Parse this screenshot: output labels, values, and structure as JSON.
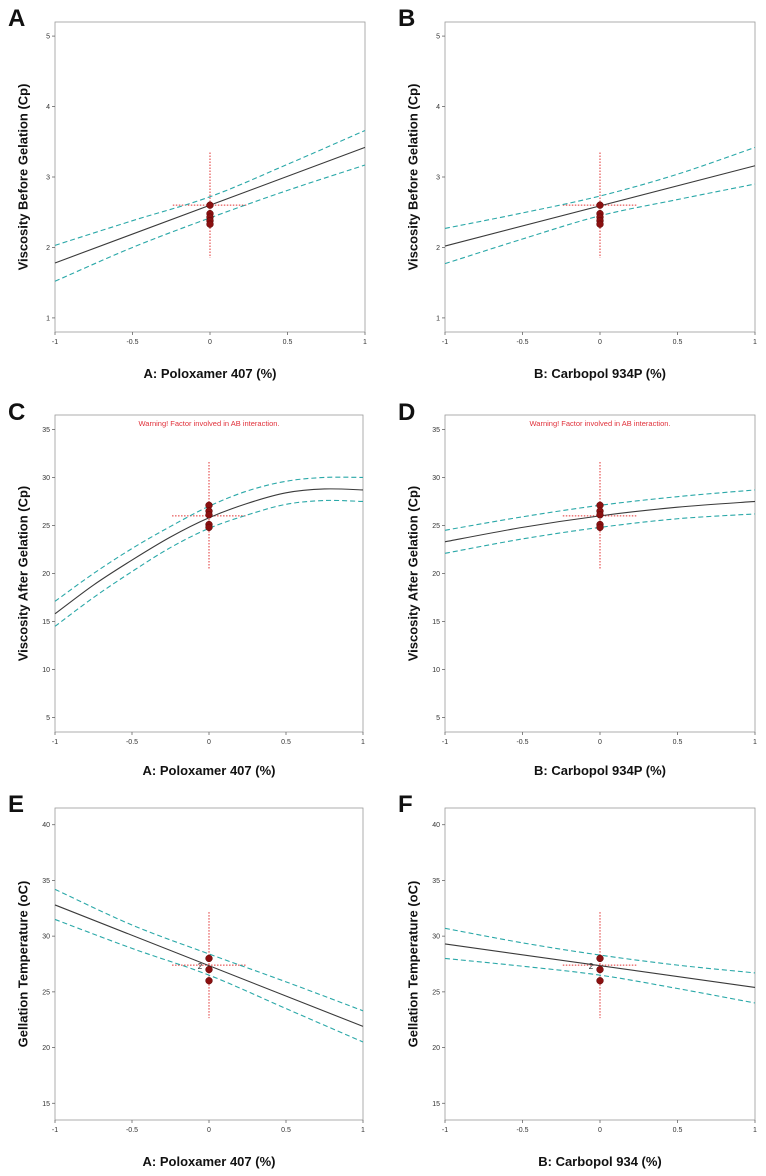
{
  "figure": {
    "chart_data": [
      {
        "type": "line",
        "panel_label": "A",
        "title": "",
        "xlabel": "A: Poloxamer 407 (%)",
        "ylabel": "Viscosity Before Gelation (Cp)",
        "xlim": [
          -1,
          1
        ],
        "ylim": [
          0.8,
          5.2
        ],
        "xticks": [
          -1,
          -0.5,
          0,
          0.5,
          1
        ],
        "xtick_labels": [
          "-1",
          "-0.5",
          "0",
          "0.5",
          "1"
        ],
        "yticks": [
          1,
          2,
          3,
          4,
          5
        ],
        "ytick_labels": [
          "1",
          "2",
          "3",
          "4",
          "5"
        ],
        "warning": "",
        "series": [
          {
            "name": "prediction",
            "x": [
              -1,
              1
            ],
            "y": [
              1.78,
              3.42
            ]
          },
          {
            "name": "upper_ci",
            "x": [
              -1,
              -0.5,
              0,
              0.5,
              1
            ],
            "y": [
              2.03,
              2.38,
              2.72,
              3.18,
              3.66
            ]
          },
          {
            "name": "lower_ci",
            "x": [
              -1,
              -0.5,
              0,
              0.5,
              1
            ],
            "y": [
              1.52,
              2.0,
              2.42,
              2.81,
              3.17
            ]
          }
        ],
        "design_points": {
          "x": [
            0,
            0,
            0,
            0,
            0
          ],
          "y": [
            2.6,
            2.48,
            2.43,
            2.38,
            2.33
          ]
        },
        "center": {
          "x": 0,
          "y": 2.6
        },
        "center_label": ""
      },
      {
        "type": "line",
        "panel_label": "B",
        "title": "",
        "xlabel": "B: Carbopol 934P (%)",
        "ylabel": "Viscosity Before Gelation (Cp)",
        "xlim": [
          -1,
          1
        ],
        "ylim": [
          0.8,
          5.2
        ],
        "xticks": [
          -1,
          -0.5,
          0,
          0.5,
          1
        ],
        "xtick_labels": [
          "-1",
          "-0.5",
          "0",
          "0.5",
          "1"
        ],
        "yticks": [
          1,
          2,
          3,
          4,
          5
        ],
        "ytick_labels": [
          "1",
          "2",
          "3",
          "4",
          "5"
        ],
        "warning": "",
        "series": [
          {
            "name": "prediction",
            "x": [
              -1,
              1
            ],
            "y": [
              2.02,
              3.16
            ]
          },
          {
            "name": "upper_ci",
            "x": [
              -1,
              -0.5,
              0,
              0.5,
              1
            ],
            "y": [
              2.27,
              2.49,
              2.73,
              3.04,
              3.42
            ]
          },
          {
            "name": "lower_ci",
            "x": [
              -1,
              -0.5,
              0,
              0.5,
              1
            ],
            "y": [
              1.77,
              2.12,
              2.45,
              2.68,
              2.9
            ]
          }
        ],
        "design_points": {
          "x": [
            0,
            0,
            0,
            0,
            0
          ],
          "y": [
            2.6,
            2.48,
            2.43,
            2.38,
            2.33
          ]
        },
        "center": {
          "x": 0,
          "y": 2.6
        },
        "center_label": ""
      },
      {
        "type": "line",
        "panel_label": "C",
        "title": "",
        "xlabel": "A: Poloxamer 407 (%)",
        "ylabel": "Viscosity After Gelation (Cp)",
        "xlim": [
          -1,
          1
        ],
        "ylim": [
          3.5,
          36.5
        ],
        "xticks": [
          -1,
          -0.5,
          0,
          0.5,
          1
        ],
        "xtick_labels": [
          "-1",
          "-0.5",
          "0",
          "0.5",
          "1"
        ],
        "yticks": [
          5,
          10,
          15,
          20,
          25,
          30,
          35
        ],
        "ytick_labels": [
          "5",
          "10",
          "15",
          "20",
          "25",
          "30",
          "35"
        ],
        "warning": "Warning! Factor involved in AB interaction.",
        "series": [
          {
            "name": "prediction",
            "x": [
              -1,
              -0.75,
              -0.5,
              -0.25,
              0,
              0.25,
              0.5,
              0.75,
              1
            ],
            "y": [
              15.8,
              18.8,
              21.4,
              23.8,
              25.8,
              27.3,
              28.4,
              28.8,
              28.7
            ]
          },
          {
            "name": "upper_ci",
            "x": [
              -1,
              -0.75,
              -0.5,
              -0.25,
              0,
              0.25,
              0.5,
              0.75,
              1
            ],
            "y": [
              17.1,
              20.0,
              22.6,
              24.9,
              27.0,
              28.6,
              29.6,
              30.0,
              30.0
            ]
          },
          {
            "name": "lower_ci",
            "x": [
              -1,
              -0.75,
              -0.5,
              -0.25,
              0,
              0.25,
              0.5,
              0.75,
              1
            ],
            "y": [
              14.5,
              17.5,
              20.2,
              22.7,
              24.7,
              26.1,
              27.2,
              27.6,
              27.5
            ]
          }
        ],
        "design_points": {
          "x": [
            0,
            0,
            0,
            0,
            0
          ],
          "y": [
            27.1,
            26.5,
            26.1,
            25.1,
            24.8
          ]
        },
        "center": {
          "x": 0,
          "y": 26
        },
        "center_label": ""
      },
      {
        "type": "line",
        "panel_label": "D",
        "title": "",
        "xlabel": "B: Carbopol 934P (%)",
        "ylabel": "Viscosity After Gelation (Cp)",
        "xlim": [
          -1,
          1
        ],
        "ylim": [
          3.5,
          36.5
        ],
        "xticks": [
          -1,
          -0.5,
          0,
          0.5,
          1
        ],
        "xtick_labels": [
          "-1",
          "-0.5",
          "0",
          "0.5",
          "1"
        ],
        "yticks": [
          5,
          10,
          15,
          20,
          25,
          30,
          35
        ],
        "ytick_labels": [
          "5",
          "10",
          "15",
          "20",
          "25",
          "30",
          "35"
        ],
        "warning": "Warning! Factor involved in AB interaction.",
        "series": [
          {
            "name": "prediction",
            "x": [
              -1,
              -0.5,
              0,
              0.5,
              1
            ],
            "y": [
              23.3,
              24.8,
              26.0,
              26.9,
              27.5
            ]
          },
          {
            "name": "upper_ci",
            "x": [
              -1,
              -0.5,
              0,
              0.5,
              1
            ],
            "y": [
              24.5,
              25.9,
              27.1,
              28.0,
              28.7
            ]
          },
          {
            "name": "lower_ci",
            "x": [
              -1,
              -0.5,
              0,
              0.5,
              1
            ],
            "y": [
              22.1,
              23.6,
              24.8,
              25.7,
              26.2
            ]
          }
        ],
        "design_points": {
          "x": [
            0,
            0,
            0,
            0,
            0
          ],
          "y": [
            27.1,
            26.5,
            26.1,
            25.1,
            24.8
          ]
        },
        "center": {
          "x": 0,
          "y": 26
        },
        "center_label": ""
      },
      {
        "type": "line",
        "panel_label": "E",
        "title": "",
        "xlabel": "A: Poloxamer 407 (%)",
        "ylabel": "Gellation Temperature (oC)",
        "xlim": [
          -1,
          1
        ],
        "ylim": [
          13.5,
          41.5
        ],
        "xticks": [
          -1,
          -0.5,
          0,
          0.5,
          1
        ],
        "xtick_labels": [
          "-1",
          "-0.5",
          "0",
          "0.5",
          "1"
        ],
        "yticks": [
          15,
          20,
          25,
          30,
          35,
          40
        ],
        "ytick_labels": [
          "15",
          "20",
          "25",
          "30",
          "35",
          "40"
        ],
        "warning": "",
        "series": [
          {
            "name": "prediction",
            "x": [
              -1,
              1
            ],
            "y": [
              32.8,
              21.9
            ]
          },
          {
            "name": "upper_ci",
            "x": [
              -1,
              -0.5,
              0,
              0.5,
              1
            ],
            "y": [
              34.2,
              31.0,
              28.4,
              25.9,
              23.3
            ]
          },
          {
            "name": "lower_ci",
            "x": [
              -1,
              -0.5,
              0,
              0.5,
              1
            ],
            "y": [
              31.5,
              28.9,
              26.5,
              23.5,
              20.5
            ]
          }
        ],
        "design_points": {
          "x": [
            0,
            0,
            0
          ],
          "y": [
            28.0,
            27.0,
            26.0
          ]
        },
        "center": {
          "x": 0,
          "y": 27.4
        },
        "center_label": "2"
      },
      {
        "type": "line",
        "panel_label": "F",
        "title": "",
        "xlabel": "B: Carbopol 934 (%)",
        "ylabel": "Gellation Temperature (oC)",
        "xlim": [
          -1,
          1
        ],
        "ylim": [
          13.5,
          41.5
        ],
        "xticks": [
          -1,
          -0.5,
          0,
          0.5,
          1
        ],
        "xtick_labels": [
          "-1",
          "-0.5",
          "0",
          "0.5",
          "1"
        ],
        "yticks": [
          15,
          20,
          25,
          30,
          35,
          40
        ],
        "ytick_labels": [
          "15",
          "20",
          "25",
          "30",
          "35",
          "40"
        ],
        "warning": "",
        "series": [
          {
            "name": "prediction",
            "x": [
              -1,
              1
            ],
            "y": [
              29.3,
              25.4
            ]
          },
          {
            "name": "upper_ci",
            "x": [
              -1,
              -0.5,
              0,
              0.5,
              1
            ],
            "y": [
              30.7,
              29.4,
              28.3,
              27.4,
              26.7
            ]
          },
          {
            "name": "lower_ci",
            "x": [
              -1,
              -0.5,
              0,
              0.5,
              1
            ],
            "y": [
              28.0,
              27.3,
              26.5,
              25.3,
              24.0
            ]
          }
        ],
        "design_points": {
          "x": [
            0,
            0,
            0
          ],
          "y": [
            28.0,
            27.0,
            26.0
          ]
        },
        "center": {
          "x": 0,
          "y": 27.4
        },
        "center_label": "2"
      }
    ]
  },
  "colors": {
    "prediction": "#3a3a3a",
    "ci": "#2aa8a8",
    "points": "#8b1010",
    "crosshair": "#e03030",
    "axis": "#666666"
  }
}
